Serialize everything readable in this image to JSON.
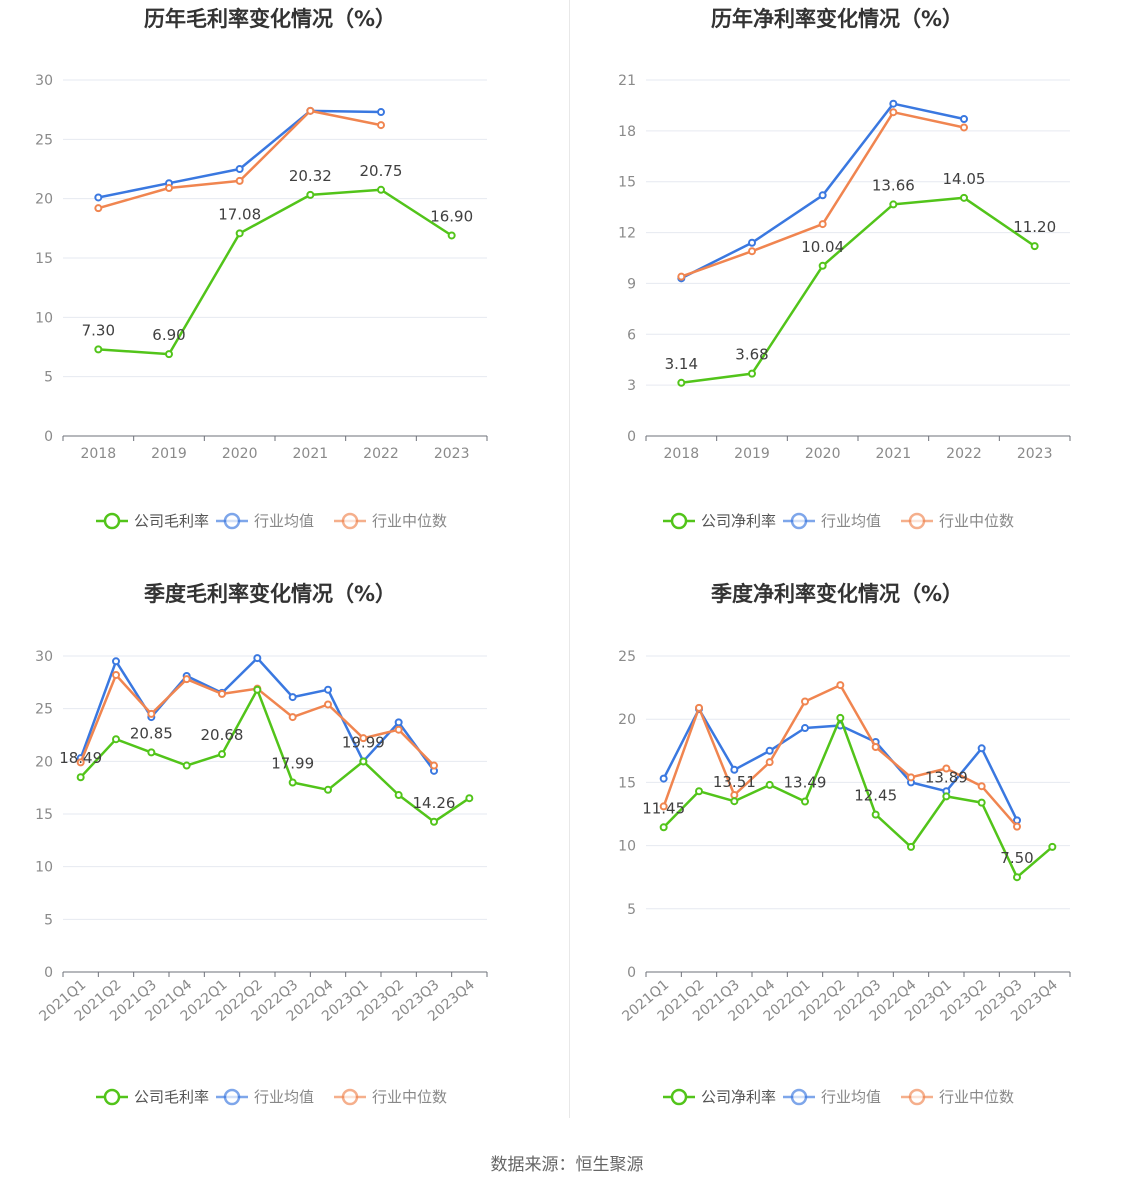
{
  "source": "数据来源：恒生聚源",
  "chart_data": [
    {
      "type": "line",
      "title": "历年毛利率变化情况（%）",
      "categories": [
        "2018",
        "2019",
        "2020",
        "2021",
        "2022",
        "2023"
      ],
      "ylim": [
        0,
        30
      ],
      "yticks": [
        0,
        5,
        10,
        15,
        20,
        25,
        30
      ],
      "grid": true,
      "legend_position": "bottom",
      "series": [
        {
          "name": "公司毛利率",
          "color": "#52c41a",
          "values": [
            7.3,
            6.9,
            17.08,
            20.32,
            20.75,
            16.9
          ],
          "labels": [
            "7.30",
            "6.90",
            "17.08",
            "20.32",
            "20.75",
            "16.90"
          ]
        },
        {
          "name": "行业均值",
          "color": "#3a78e0",
          "values": [
            20.1,
            21.3,
            22.5,
            27.4,
            27.3,
            null
          ]
        },
        {
          "name": "行业中位数",
          "color": "#f08550",
          "values": [
            19.2,
            20.9,
            21.5,
            27.4,
            26.2,
            null
          ]
        }
      ]
    },
    {
      "type": "line",
      "title": "历年净利率变化情况（%）",
      "categories": [
        "2018",
        "2019",
        "2020",
        "2021",
        "2022",
        "2023"
      ],
      "ylim": [
        0,
        21
      ],
      "yticks": [
        0,
        3,
        6,
        9,
        12,
        15,
        18,
        21
      ],
      "grid": true,
      "legend_position": "bottom",
      "series": [
        {
          "name": "公司净利率",
          "color": "#52c41a",
          "values": [
            3.14,
            3.68,
            10.04,
            13.66,
            14.05,
            11.2
          ],
          "labels": [
            "3.14",
            "3.68",
            "10.04",
            "13.66",
            "14.05",
            "11.20"
          ]
        },
        {
          "name": "行业均值",
          "color": "#3a78e0",
          "values": [
            9.3,
            11.4,
            14.2,
            19.6,
            18.7,
            null
          ]
        },
        {
          "name": "行业中位数",
          "color": "#f08550",
          "values": [
            9.4,
            10.9,
            12.5,
            19.1,
            18.2,
            null
          ]
        }
      ]
    },
    {
      "type": "line",
      "title": "季度毛利率变化情况（%）",
      "categories": [
        "2021Q1",
        "2021Q2",
        "2021Q3",
        "2021Q4",
        "2022Q1",
        "2022Q2",
        "2022Q3",
        "2022Q4",
        "2023Q1",
        "2023Q2",
        "2023Q3",
        "2023Q4"
      ],
      "ylim": [
        0,
        30
      ],
      "yticks": [
        0,
        5,
        10,
        15,
        20,
        25,
        30
      ],
      "grid": true,
      "legend_position": "bottom",
      "series": [
        {
          "name": "公司毛利率",
          "color": "#52c41a",
          "values": [
            18.49,
            22.1,
            20.85,
            19.6,
            20.68,
            26.8,
            17.99,
            17.3,
            19.99,
            16.8,
            14.26,
            16.5
          ],
          "labels": [
            "18.49",
            "",
            "20.85",
            "",
            "20.68",
            "",
            "17.99",
            "",
            "19.99",
            "",
            "14.26",
            ""
          ]
        },
        {
          "name": "行业均值",
          "color": "#3a78e0",
          "values": [
            20.3,
            29.5,
            24.2,
            28.1,
            26.5,
            29.8,
            26.1,
            26.8,
            20.0,
            23.7,
            19.1,
            null
          ]
        },
        {
          "name": "行业中位数",
          "color": "#f08550",
          "values": [
            19.9,
            28.2,
            24.5,
            27.8,
            26.4,
            26.9,
            24.2,
            25.4,
            22.2,
            23.0,
            19.6,
            null
          ]
        }
      ]
    },
    {
      "type": "line",
      "title": "季度净利率变化情况（%）",
      "categories": [
        "2021Q1",
        "2021Q2",
        "2021Q3",
        "2021Q4",
        "2022Q1",
        "2022Q2",
        "2022Q3",
        "2022Q4",
        "2023Q1",
        "2023Q2",
        "2023Q3",
        "2023Q4"
      ],
      "ylim": [
        0,
        25
      ],
      "yticks": [
        0,
        5,
        10,
        15,
        20,
        25
      ],
      "grid": true,
      "legend_position": "bottom",
      "series": [
        {
          "name": "公司净利率",
          "color": "#52c41a",
          "values": [
            11.45,
            14.3,
            13.51,
            14.8,
            13.49,
            20.1,
            12.45,
            9.9,
            13.89,
            13.4,
            7.5,
            9.9
          ],
          "labels": [
            "11.45",
            "",
            "13.51",
            "",
            "13.49",
            "",
            "12.45",
            "",
            "13.89",
            "",
            "7.50",
            ""
          ]
        },
        {
          "name": "行业均值",
          "color": "#3a78e0",
          "values": [
            15.3,
            20.8,
            16.0,
            17.5,
            19.3,
            19.5,
            18.2,
            15.0,
            14.3,
            17.7,
            12.0,
            null
          ]
        },
        {
          "name": "行业中位数",
          "color": "#f08550",
          "values": [
            13.1,
            20.9,
            14.0,
            16.6,
            21.4,
            22.7,
            17.8,
            15.4,
            16.1,
            14.7,
            11.5,
            null
          ]
        }
      ]
    }
  ]
}
